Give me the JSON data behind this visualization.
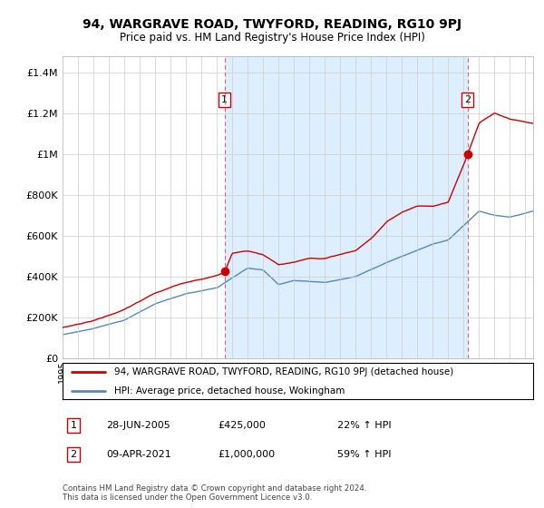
{
  "title": "94, WARGRAVE ROAD, TWYFORD, READING, RG10 9PJ",
  "subtitle": "Price paid vs. HM Land Registry's House Price Index (HPI)",
  "ylabel_ticks": [
    "£0",
    "£200K",
    "£400K",
    "£600K",
    "£800K",
    "£1M",
    "£1.2M",
    "£1.4M"
  ],
  "ylabel_values": [
    0,
    200000,
    400000,
    600000,
    800000,
    1000000,
    1200000,
    1400000
  ],
  "ylim": [
    0,
    1480000
  ],
  "xlim_start": 1995,
  "xlim_end": 2025.5,
  "sale1_x": 2005.5,
  "sale1_y": 425000,
  "sale1_label": "1",
  "sale2_x": 2021.25,
  "sale2_y": 1000000,
  "sale2_label": "2",
  "vline1_x": 2005.5,
  "vline2_x": 2021.25,
  "legend_red_label": "94, WARGRAVE ROAD, TWYFORD, READING, RG10 9PJ (detached house)",
  "legend_blue_label": "HPI: Average price, detached house, Wokingham",
  "table_row1": [
    "1",
    "28-JUN-2005",
    "£425,000",
    "22% ↑ HPI"
  ],
  "table_row2": [
    "2",
    "09-APR-2021",
    "£1,000,000",
    "59% ↑ HPI"
  ],
  "footer": "Contains HM Land Registry data © Crown copyright and database right 2024.\nThis data is licensed under the Open Government Licence v3.0.",
  "red_color": "#cc0000",
  "blue_color": "#5588bb",
  "vline_color": "#dd6666",
  "bg_color": "#ffffff",
  "fill_color": "#ddeeff",
  "grid_color": "#cccccc"
}
